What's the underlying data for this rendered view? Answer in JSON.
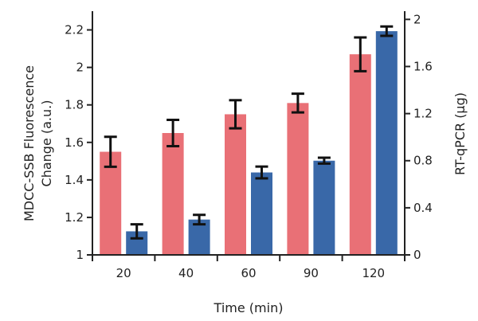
{
  "chart_data": {
    "type": "bar",
    "categories": [
      "20",
      "40",
      "60",
      "90",
      "120"
    ],
    "xlabel": "Time (min)",
    "ylabel_left": [
      "MDCC-SSB Fluorescence",
      "Change (a.u.)"
    ],
    "ylabel_right": "RT-qPCR (µg)",
    "left_axis": {
      "ylim": [
        1.0,
        2.3
      ],
      "ticks": [
        "1",
        "1.2",
        "1.4",
        "1.6",
        "1.8",
        "2",
        "2.2"
      ]
    },
    "right_axis": {
      "ylim": [
        0.0,
        2.07
      ],
      "ticks": [
        "0",
        "0.4",
        "0.8",
        "1.2",
        "1.6",
        "2"
      ]
    },
    "grid": false,
    "series": [
      {
        "axis": "left",
        "color": "#e97076",
        "values": [
          1.55,
          1.65,
          1.75,
          1.81,
          2.07
        ],
        "errors": [
          0.08,
          0.07,
          0.075,
          0.05,
          0.09
        ]
      },
      {
        "axis": "right",
        "color": "#3968a8",
        "values": [
          0.2,
          0.3,
          0.7,
          0.8,
          1.9
        ],
        "errors": [
          0.06,
          0.04,
          0.05,
          0.025,
          0.04
        ]
      }
    ]
  }
}
